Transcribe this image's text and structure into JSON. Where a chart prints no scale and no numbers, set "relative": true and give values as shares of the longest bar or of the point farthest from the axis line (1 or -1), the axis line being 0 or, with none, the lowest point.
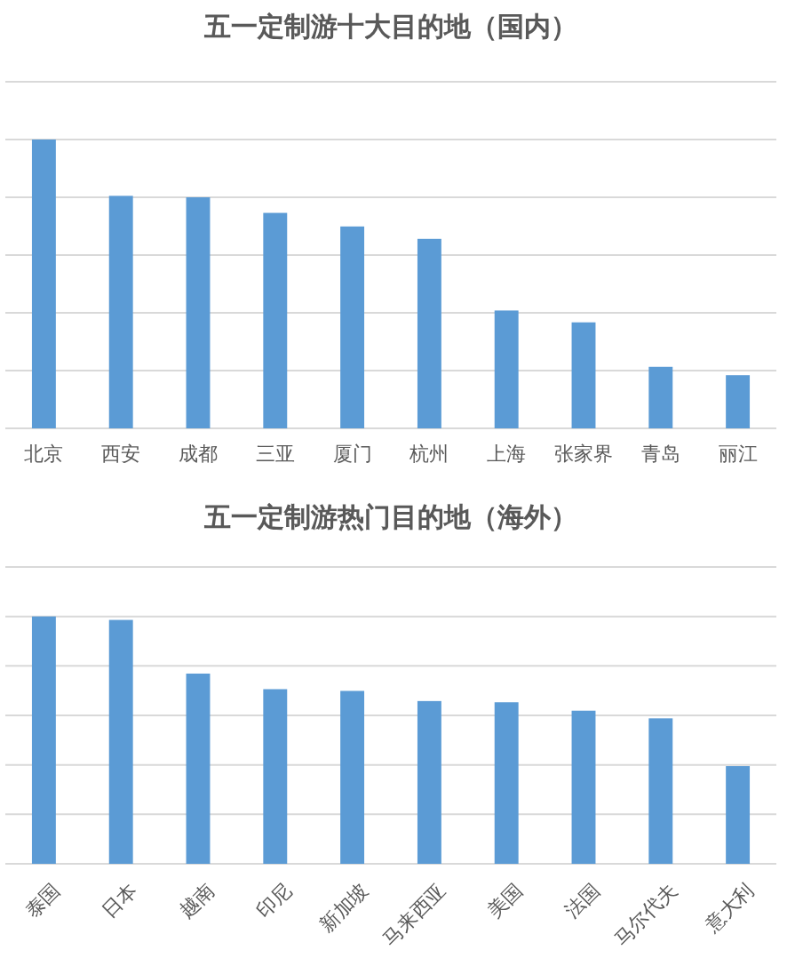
{
  "chart_data": [
    {
      "type": "bar",
      "title": "五一定制游十大目的地（国内）",
      "relative": true,
      "grid": "y",
      "color": "#5b9bd5",
      "categories": [
        "北京",
        "西安",
        "成都",
        "三亚",
        "厦门",
        "杭州",
        "上海",
        "张家界",
        "青岛",
        "丽江"
      ],
      "values": [
        1,
        0.805,
        0.8,
        0.746,
        0.699,
        0.656,
        0.408,
        0.367,
        0.213,
        0.184
      ]
    },
    {
      "type": "bar",
      "title": "五一定制游热门目的地（海外）",
      "relative": true,
      "grid": "y",
      "color": "#5b9bd5",
      "categories": [
        "泰国",
        "日本",
        "越南",
        "印尼",
        "新加坡",
        "马来西亚",
        "美国",
        "法国",
        "马尔代夫",
        "意大利"
      ],
      "values": [
        1,
        0.986,
        0.769,
        0.706,
        0.699,
        0.658,
        0.653,
        0.619,
        0.588,
        0.395
      ]
    }
  ]
}
